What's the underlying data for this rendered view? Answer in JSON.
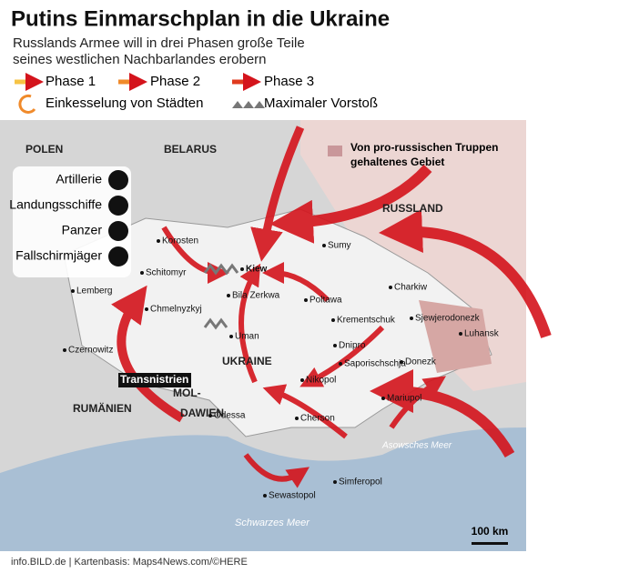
{
  "header": {
    "title": "Putins Einmarschplan in die Ukraine",
    "subtitle": [
      "Russlands Armee will in drei Phasen große Teile",
      "seines westlichen Nachbarlandes erobern"
    ]
  },
  "legend": {
    "items": [
      "Phase 1",
      "Phase 2",
      "Phase 3",
      "Einkesselung von Städten",
      "Maximaler Vorstoß"
    ]
  },
  "map": {
    "held_area": [
      "Von pro-russischen Truppen",
      "gehaltenes Gebiet"
    ],
    "units": [
      "Artillerie",
      "Landungsschiffe",
      "Panzer",
      "Fallschirmjäger"
    ],
    "countries": [
      "POLEN",
      "BELARUS",
      "RUSSLAND",
      "UKRAINE",
      "RUMÄNIEN",
      "MOL-",
      "DAWIEN"
    ],
    "regions": [
      "Transnistrien",
      "Schwarzes Meer",
      "Asowsches Meer"
    ],
    "cities": [
      "Korosten",
      "Schitomyr",
      "Kiew",
      "Lemberg",
      "Chmelnyzkyj",
      "Bila Zerkwa",
      "Uman",
      "Czernowitz",
      "Sumy",
      "Charkiw",
      "Poltawa",
      "Krementschuk",
      "Dnipro",
      "Saporischschja",
      "Nikopol",
      "Sjewjerodonezk",
      "Luhansk",
      "Donezk",
      "Mariupol",
      "Cherson",
      "Odessa",
      "Simferopol",
      "Sewastopol"
    ],
    "scale": "100 km"
  },
  "footer": "info.BILD.de | Kartenbasis: Maps4News.com/©HERE"
}
